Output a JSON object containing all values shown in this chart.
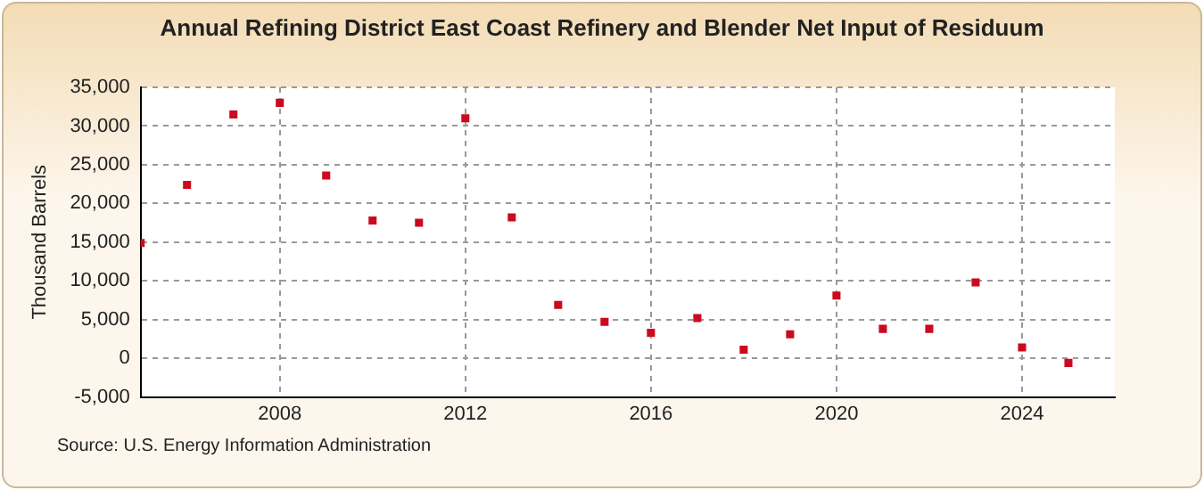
{
  "chart_data": {
    "type": "scatter",
    "title": "Annual Refining District East Coast Refinery and Blender Net Input of Residuum",
    "ylabel": "Thousand Barrels",
    "x": [
      2005,
      2006,
      2007,
      2008,
      2009,
      2010,
      2011,
      2012,
      2013,
      2014,
      2015,
      2016,
      2017,
      2018,
      2019,
      2020,
      2021,
      2022,
      2023,
      2024,
      2025
    ],
    "series": [
      {
        "color": "#cc0a1e",
        "values": [
          14900,
          22400,
          31500,
          33000,
          23600,
          17800,
          17500,
          31000,
          18200,
          6900,
          4700,
          3300,
          5200,
          1100,
          3100,
          8100,
          3800,
          3800,
          9800,
          1400,
          -600
        ]
      }
    ],
    "xlim": [
      2005,
      2026
    ],
    "xticks": [
      2008,
      2012,
      2016,
      2020,
      2024
    ],
    "ylim": [
      -5000,
      35000
    ],
    "yticks": [
      {
        "value": -5000,
        "label": "-5,000"
      },
      0,
      {
        "value": 5000,
        "label": "5,000"
      },
      {
        "value": 10000,
        "label": "10,000"
      },
      {
        "value": 15000,
        "label": "15,000"
      },
      {
        "value": 20000,
        "label": "20,000"
      },
      {
        "value": 25000,
        "label": "25,000"
      },
      {
        "value": 30000,
        "label": "30,000"
      },
      {
        "value": 35000,
        "label": "35,000"
      }
    ],
    "grid": true,
    "legend": false,
    "marker": "square",
    "annotations": [
      "Source: U.S. Energy Information Administration"
    ]
  }
}
